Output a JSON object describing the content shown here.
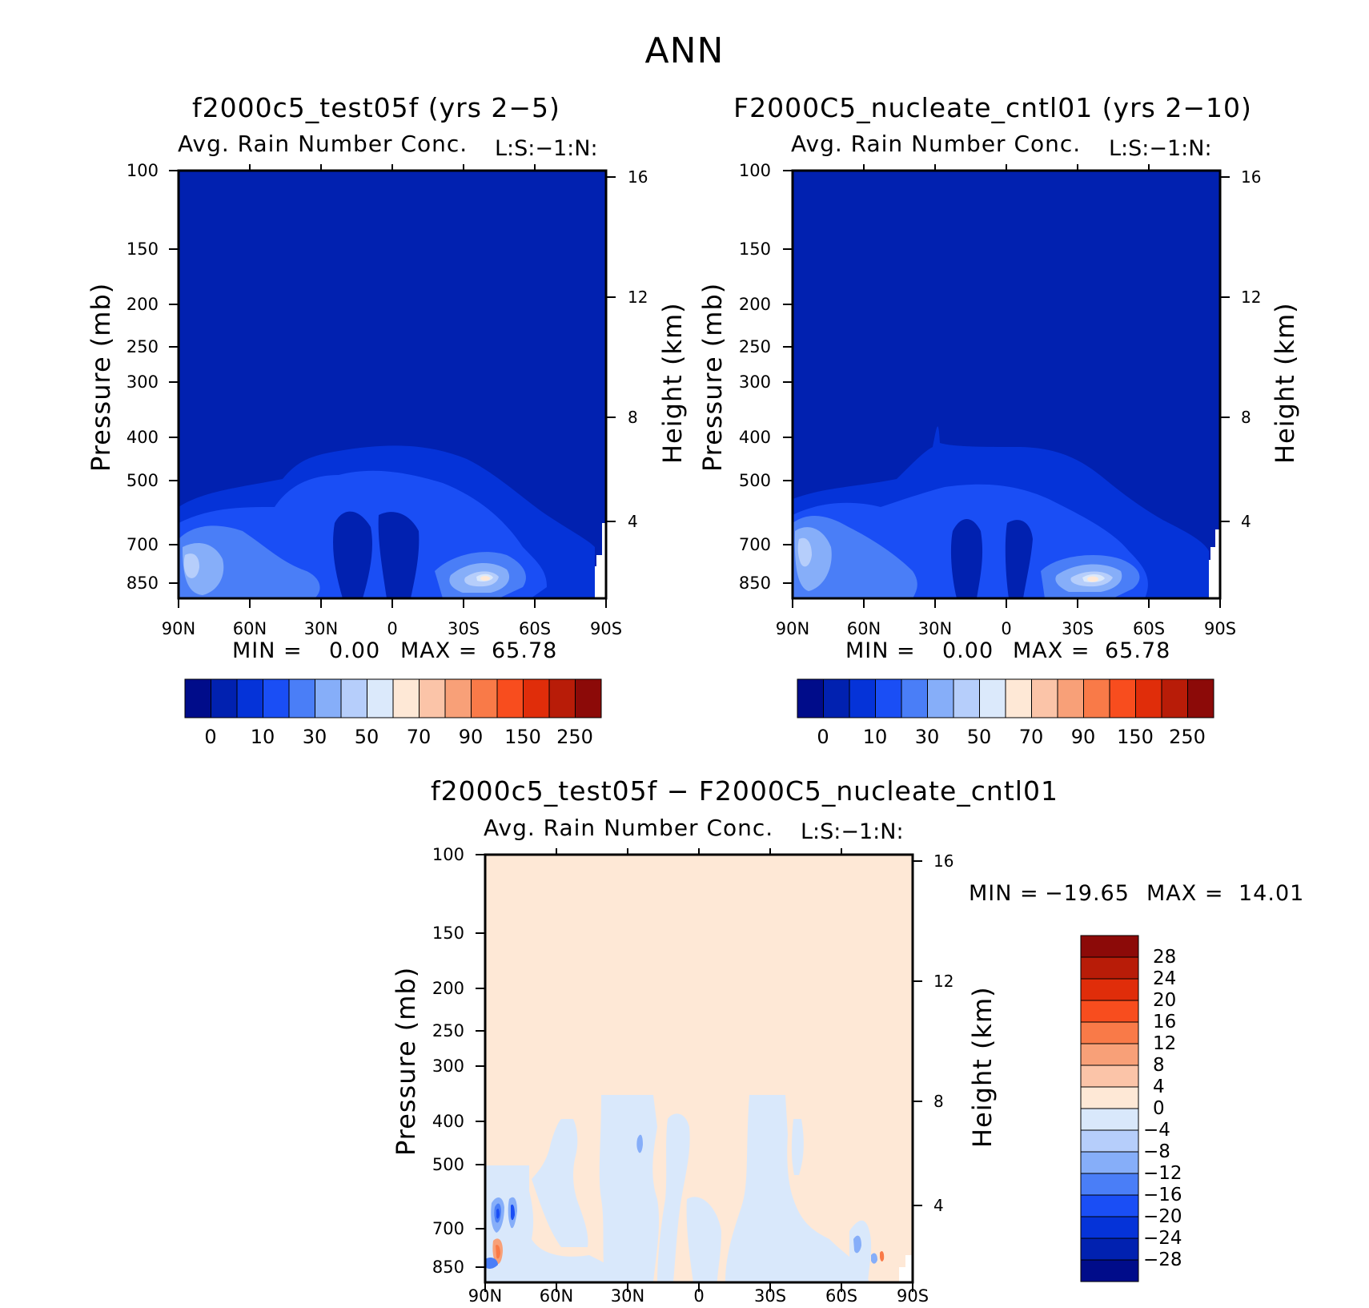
{
  "page_title": "ANN",
  "chart_data": [
    {
      "type": "contour",
      "title": "f2000c5_test05f (yrs 2−5)",
      "subtitle": "Avg. Rain Number Conc.",
      "level_label": "L:S:−1:N:",
      "ylabel": "Pressure (mb)",
      "ylabel_right": "Height (km)",
      "y_ticks": [
        "100",
        "150",
        "200",
        "250",
        "300",
        "400",
        "500",
        "700",
        "850"
      ],
      "y_right_ticks": [
        "16",
        "12",
        "8",
        "4"
      ],
      "x_ticks": [
        "90N",
        "60N",
        "30N",
        "0",
        "30S",
        "60S",
        "90S"
      ],
      "min_label": "MIN =",
      "min_value": "0.00",
      "max_label": "MAX =",
      "max_value": "65.78",
      "colorbar_labels": [
        "0",
        "10",
        "30",
        "50",
        "70",
        "90",
        "150",
        "250"
      ]
    },
    {
      "type": "contour",
      "title": "F2000C5_nucleate_cntl01 (yrs 2−10)",
      "subtitle": "Avg. Rain Number Conc.",
      "level_label": "L:S:−1:N:",
      "ylabel": "Pressure (mb)",
      "ylabel_right": "Height (km)",
      "y_ticks": [
        "100",
        "150",
        "200",
        "250",
        "300",
        "400",
        "500",
        "700",
        "850"
      ],
      "y_right_ticks": [
        "16",
        "12",
        "8",
        "4"
      ],
      "x_ticks": [
        "90N",
        "60N",
        "30N",
        "0",
        "30S",
        "60S",
        "90S"
      ],
      "min_label": "MIN =",
      "min_value": "0.00",
      "max_label": "MAX =",
      "max_value": "65.78",
      "colorbar_labels": [
        "0",
        "10",
        "30",
        "50",
        "70",
        "90",
        "150",
        "250"
      ]
    },
    {
      "type": "contour",
      "title": "f2000c5_test05f − F2000C5_nucleate_cntl01",
      "subtitle": "Avg. Rain Number Conc.",
      "level_label": "L:S:−1:N:",
      "ylabel": "Pressure (mb)",
      "ylabel_right": "Height (km)",
      "y_ticks": [
        "100",
        "150",
        "200",
        "250",
        "300",
        "400",
        "500",
        "700",
        "850"
      ],
      "y_right_ticks": [
        "16",
        "12",
        "8",
        "4"
      ],
      "x_ticks": [
        "90N",
        "60N",
        "30N",
        "0",
        "30S",
        "60S",
        "90S"
      ],
      "min_label": "MIN =",
      "min_value": "−19.65",
      "max_label": "MAX =",
      "max_value": "14.01",
      "colorbar_labels": [
        "28",
        "24",
        "20",
        "16",
        "12",
        "8",
        "4",
        "0",
        "−4",
        "−8",
        "−12",
        "−16",
        "−20",
        "−24",
        "−28"
      ]
    }
  ],
  "colors": {
    "seq": [
      "#000c8a",
      "#0121b0",
      "#0533d8",
      "#1a4ef5",
      "#4a7ef7",
      "#86aef9",
      "#b6cefb",
      "#dbe9fb",
      "#fee8d6",
      "#fbc4a8",
      "#f8a078",
      "#f97a48",
      "#f84d1e",
      "#e02d0a",
      "#b81c08",
      "#8c0a08"
    ],
    "diff": [
      "#8c0a08",
      "#b81c08",
      "#e02d0a",
      "#f84d1e",
      "#f97a48",
      "#f8a078",
      "#fbc4a8",
      "#fee8d6",
      "#d9e8fb",
      "#b6cefb",
      "#86aef9",
      "#4a7ef7",
      "#1a4ef5",
      "#0533d8",
      "#0121b0",
      "#000c8a"
    ]
  }
}
